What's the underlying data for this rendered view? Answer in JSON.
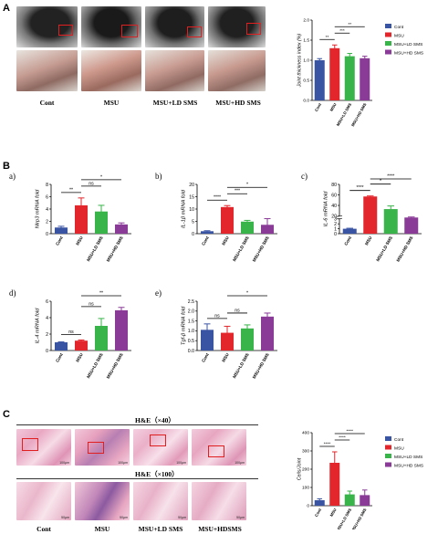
{
  "panel_letters": {
    "a": "A",
    "b": "B",
    "c": "C"
  },
  "panel_a": {
    "group_labels": [
      "Cont",
      "MSU",
      "MSU+LD SMS",
      "MSU+HD SMS"
    ]
  },
  "panel_c": {
    "he_x40": "H&E（×40）",
    "he_x100": "H&E（×100）",
    "group_labels": [
      "Cont",
      "MSU",
      "MSU+LD SMS",
      "MSU+HDSMS"
    ],
    "scale_labels": [
      "100μm",
      "100μm",
      "100μm",
      "100μm",
      "50μm",
      "50μm",
      "50μm",
      "50μm"
    ]
  },
  "sub_labels": [
    "a)",
    "b)",
    "c)",
    "d)",
    "e)"
  ],
  "colors": {
    "cont": "#3a54a4",
    "msu": "#e3262b",
    "ld": "#39b44a",
    "hd": "#8a3a97"
  },
  "chart_data": [
    {
      "id": "A-joint",
      "type": "bar",
      "categories": [
        "Cont",
        "MSU",
        "MSU+LD SMS",
        "MSU+HD SMS"
      ],
      "values": [
        1.0,
        1.3,
        1.1,
        1.05
      ],
      "errors": [
        0.04,
        0.08,
        0.07,
        0.05
      ],
      "ylabel": "Joint thickness index (%)",
      "ylim": [
        0.0,
        2.0
      ],
      "yticks": [
        "0.0",
        "0.5",
        "1.0",
        "1.5",
        "2.0"
      ],
      "sig": [
        {
          "from": 0,
          "to": 1,
          "label": "**"
        },
        {
          "from": 1,
          "to": 2,
          "label": "***"
        },
        {
          "from": 1,
          "to": 3,
          "label": "**"
        }
      ],
      "legend": [
        "Cont",
        "MSU",
        "MSU+LD SMS",
        "MSU+HD SMS"
      ]
    },
    {
      "id": "B-a",
      "type": "bar",
      "categories": [
        "Cont",
        "MSU",
        "MSU+LD SMS",
        "MSU+HD SMS"
      ],
      "values": [
        1.0,
        4.6,
        3.6,
        1.5
      ],
      "errors": [
        0.2,
        1.2,
        1.0,
        0.25
      ],
      "ylabel": "Nlrp3 mRNA fold",
      "ylim": [
        0,
        8
      ],
      "yticks": [
        "0",
        "2",
        "4",
        "6",
        "8"
      ],
      "sig": [
        {
          "from": 0,
          "to": 1,
          "label": "**"
        },
        {
          "from": 1,
          "to": 2,
          "label": "ns"
        },
        {
          "from": 1,
          "to": 3,
          "label": "*"
        }
      ]
    },
    {
      "id": "B-b",
      "type": "bar",
      "categories": [
        "Cont",
        "MSU",
        "MSU+LD SMS",
        "MSU+HD SMS"
      ],
      "values": [
        1.0,
        10.8,
        4.9,
        3.6
      ],
      "errors": [
        0.2,
        0.6,
        0.5,
        2.5
      ],
      "ylabel": "IL-1β mRNA fold",
      "ylim": [
        0,
        20
      ],
      "yticks": [
        "0",
        "5",
        "10",
        "15",
        "20"
      ],
      "sig": [
        {
          "from": 0,
          "to": 1,
          "label": "****"
        },
        {
          "from": 1,
          "to": 2,
          "label": "***"
        },
        {
          "from": 1,
          "to": 3,
          "label": "*"
        }
      ]
    },
    {
      "id": "B-c",
      "type": "bar",
      "categories": [
        "Cont",
        "MSU",
        "MSU+LD SMS",
        "MSU+HD SMS"
      ],
      "values": [
        1.0,
        57,
        33,
        17
      ],
      "errors": [
        0.1,
        1,
        6,
        1
      ],
      "ylabel": "IL-6 mRNA fold",
      "broken_axis": true,
      "yticks": [
        "0",
        "1",
        "2",
        "3",
        "20",
        "40",
        "60",
        "80"
      ],
      "sig": [
        {
          "from": 0,
          "to": 1,
          "label": "****"
        },
        {
          "from": 1,
          "to": 2,
          "label": "*"
        },
        {
          "from": 1,
          "to": 3,
          "label": "****"
        }
      ]
    },
    {
      "id": "B-d",
      "type": "bar",
      "categories": [
        "Cont",
        "MSU",
        "MSU+LD SMS",
        "MSU+HD SMS"
      ],
      "values": [
        1.0,
        1.2,
        3.0,
        4.9
      ],
      "errors": [
        0.05,
        0.08,
        0.9,
        0.35
      ],
      "ylabel": "IL-4 mRNA fold",
      "ylim": [
        0,
        6
      ],
      "yticks": [
        "0",
        "2",
        "4",
        "6"
      ],
      "sig": [
        {
          "from": 0,
          "to": 1,
          "label": "ns"
        },
        {
          "from": 1,
          "to": 2,
          "label": "ns"
        },
        {
          "from": 1,
          "to": 3,
          "label": "**"
        }
      ]
    },
    {
      "id": "B-e",
      "type": "bar",
      "categories": [
        "Cont",
        "MSU",
        "MSU+LD SMS",
        "MSU+HD SMS"
      ],
      "values": [
        1.05,
        0.9,
        1.12,
        1.72
      ],
      "errors": [
        0.3,
        0.33,
        0.18,
        0.18
      ],
      "ylabel": "Tgf-β mRNA fold",
      "ylim": [
        0.0,
        2.5
      ],
      "yticks": [
        "0.0",
        "0.5",
        "1.0",
        "1.5",
        "2.0",
        "2.5"
      ],
      "sig": [
        {
          "from": 0,
          "to": 1,
          "label": "ns"
        },
        {
          "from": 1,
          "to": 2,
          "label": "ns"
        },
        {
          "from": 1,
          "to": 3,
          "label": "*"
        }
      ]
    },
    {
      "id": "C-cells",
      "type": "bar",
      "categories": [
        "Cont",
        "MSU",
        "MSU+LD SMS",
        "MSU+HD SMS"
      ],
      "values": [
        30,
        235,
        62,
        58
      ],
      "errors": [
        8,
        60,
        18,
        28
      ],
      "ylabel": "Cells/Joint",
      "ylim": [
        0,
        400
      ],
      "yticks": [
        "0",
        "100",
        "200",
        "300",
        "400"
      ],
      "sig": [
        {
          "from": 0,
          "to": 1,
          "label": "****"
        },
        {
          "from": 1,
          "to": 2,
          "label": "****"
        },
        {
          "from": 1,
          "to": 3,
          "label": "****"
        }
      ],
      "legend": [
        "Cont",
        "MSU",
        "MSU+LD SMS",
        "MSU+HD SMS"
      ]
    }
  ]
}
